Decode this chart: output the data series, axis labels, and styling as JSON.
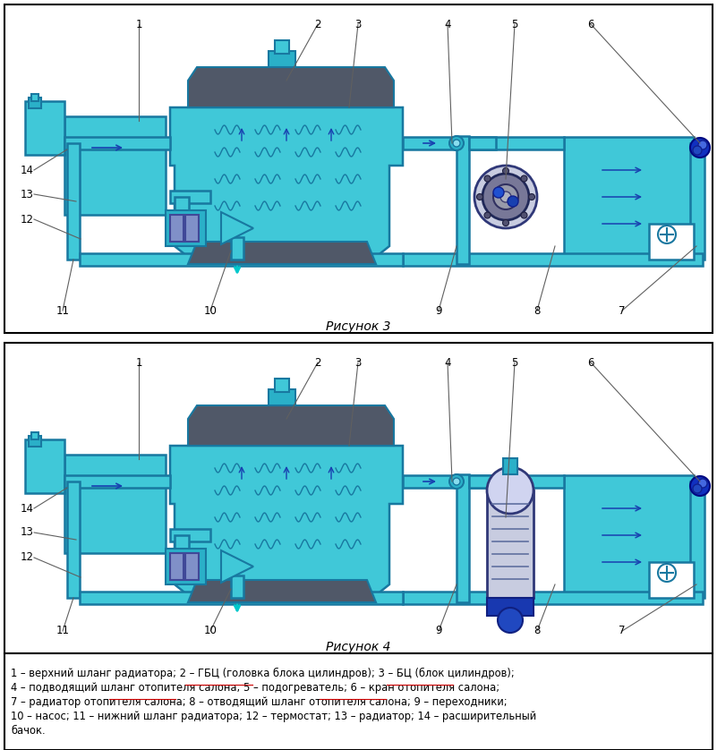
{
  "fig_width": 8.01,
  "fig_height": 8.38,
  "dpi": 100,
  "bg_color": "#ffffff",
  "teal_fill": "#40c8d8",
  "teal_mid": "#2ab0c8",
  "teal_outline": "#1878a0",
  "gray_dark": "#505868",
  "blue_dark": "#1840b0",
  "blue_med": "#2060d0",
  "fig3_title": "Рисунок 3",
  "fig4_title": "Рисунок 4",
  "legend_line1": "1 – верхний шланг радиатора; 2 – ГБЦ (головка блока цилиндров); 3 – БЦ (блок цилиндров);",
  "legend_line2": "4 – подводящий шланг отопителя салона; 5 – подогреватель; 6 – кран отопителя салона;",
  "legend_line3": "7 – радиатор отопителя салона; 8 – отводящий шланг отопителя салона; 9 – переходники;",
  "legend_line4": "10 – насос; 11 – нижний шланг радиатора; 12 – термостат; 13 – радиатор; 14 – расширительный",
  "legend_line5": "бачок.",
  "legend_underlines": [
    [
      67,
      115
    ],
    [
      67,
      115
    ],
    [
      78,
      126
    ],
    [
      78,
      126
    ]
  ]
}
